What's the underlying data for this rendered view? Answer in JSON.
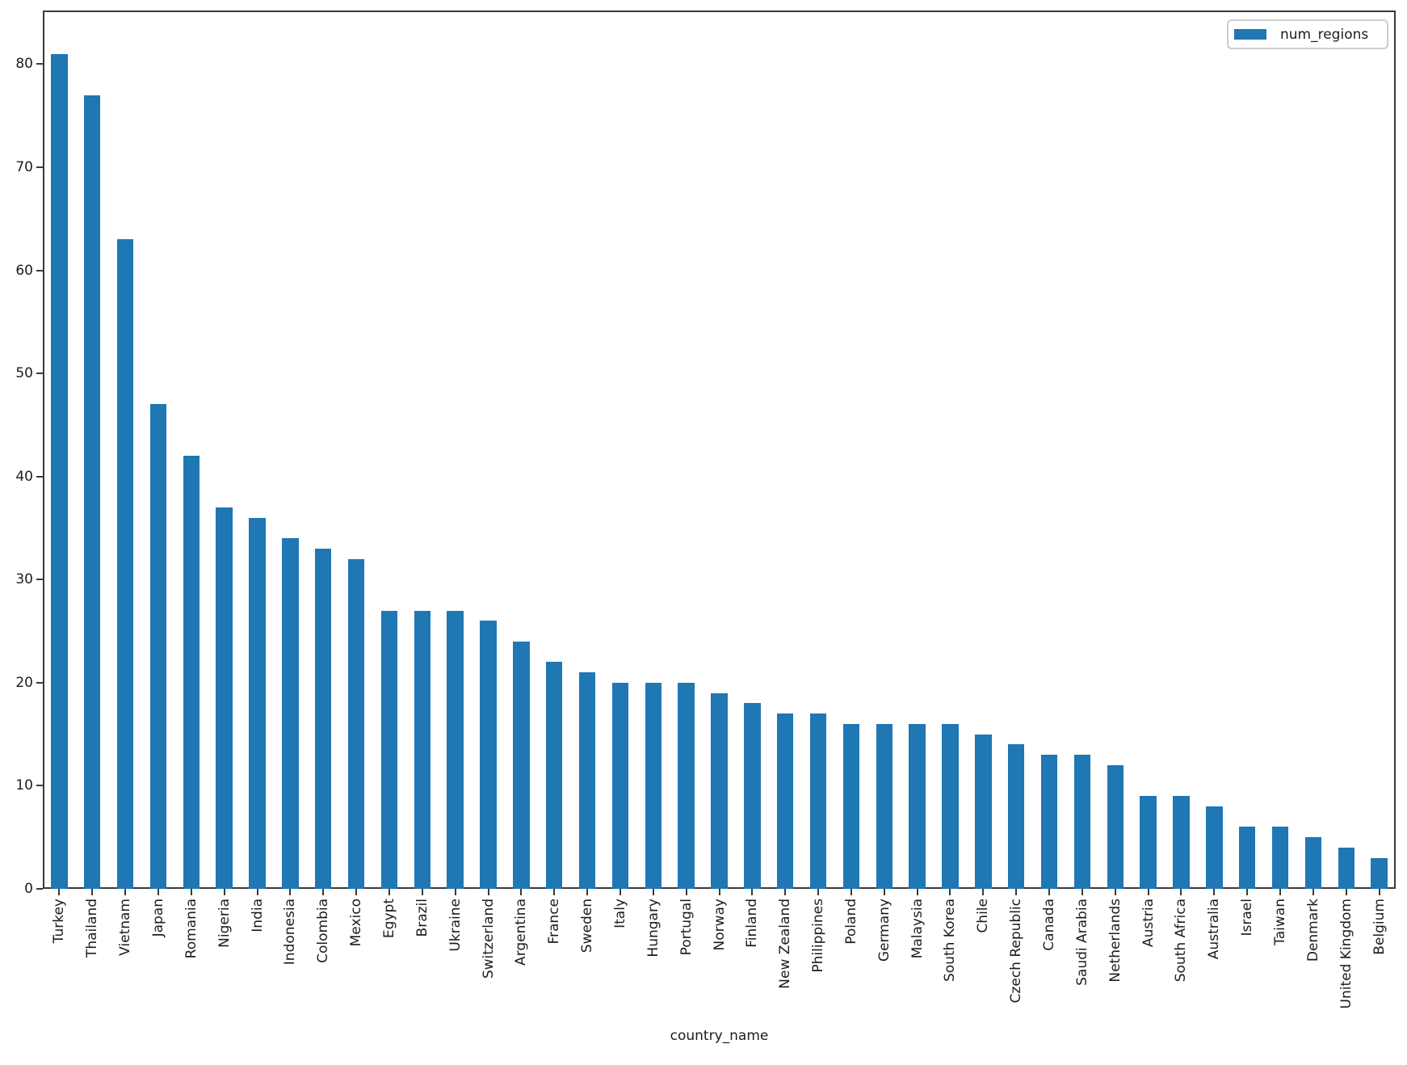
{
  "figure": {
    "background": "#ffffff",
    "spine_color": "#3a3a3a",
    "text_color": "#1c1c1c"
  },
  "chart_data": {
    "type": "bar",
    "title": "",
    "xlabel": "country_name",
    "ylabel": "",
    "grid": false,
    "bar_color": "#1f77b4",
    "categories": [
      "Turkey",
      "Thailand",
      "Vietnam",
      "Japan",
      "Romania",
      "Nigeria",
      "India",
      "Indonesia",
      "Colombia",
      "Mexico",
      "Egypt",
      "Brazil",
      "Ukraine",
      "Switzerland",
      "Argentina",
      "France",
      "Sweden",
      "Italy",
      "Hungary",
      "Portugal",
      "Norway",
      "Finland",
      "New Zealand",
      "Philippines",
      "Poland",
      "Germany",
      "Malaysia",
      "South Korea",
      "Chile",
      "Czech Republic",
      "Canada",
      "Saudi Arabia",
      "Netherlands",
      "Austria",
      "South Africa",
      "Australia",
      "Israel",
      "Taiwan",
      "Denmark",
      "United Kingdom",
      "Belgium"
    ],
    "values": [
      81,
      77,
      63,
      47,
      42,
      37,
      36,
      34,
      33,
      32,
      27,
      27,
      27,
      26,
      24,
      22,
      21,
      20,
      20,
      20,
      19,
      18,
      17,
      17,
      16,
      16,
      16,
      16,
      15,
      14,
      13,
      13,
      12,
      9,
      9,
      8,
      6,
      6,
      5,
      4,
      3
    ],
    "yticks": [
      0,
      10,
      20,
      30,
      40,
      50,
      60,
      70,
      80
    ],
    "ylim": [
      0,
      85.2
    ],
    "legend": {
      "label": "num_regions",
      "position": "upper right",
      "swatch_color": "#1f77b4"
    }
  }
}
